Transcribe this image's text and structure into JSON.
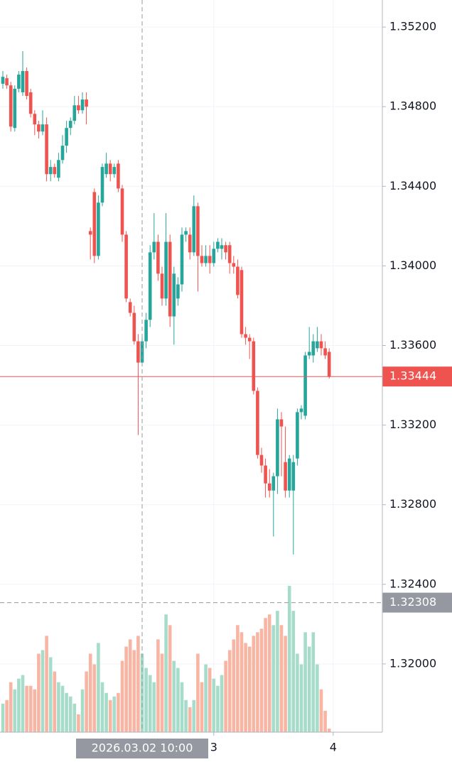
{
  "chart_data": {
    "type": "candlestick",
    "up_color": "#26a69a",
    "down_color": "#ef5350",
    "volume_up_color": "#a6dcc9",
    "volume_down_color": "#f8b5a4",
    "ylim": [
      1.31657,
      1.35336
    ],
    "yticks": [
      {
        "value": 1.352,
        "label": "1.35200"
      },
      {
        "value": 1.348,
        "label": "1.34800"
      },
      {
        "value": 1.344,
        "label": "1.34400"
      },
      {
        "value": 1.34,
        "label": "1.34000"
      },
      {
        "value": 1.336,
        "label": "1.33600"
      },
      {
        "value": 1.332,
        "label": "1.33200"
      },
      {
        "value": 1.328,
        "label": "1.32800"
      },
      {
        "value": 1.324,
        "label": "1.32400"
      },
      {
        "value": 1.32,
        "label": "1.32000"
      }
    ],
    "xticks": [
      {
        "value": 53,
        "label": "3"
      },
      {
        "value": 83,
        "label": "4"
      }
    ],
    "grid": true,
    "last_price": 1.33444,
    "crosshair": {
      "x": 35,
      "x_label": "2026.03.02 10:00",
      "y": 1.32308
    },
    "open": [
      1.34915,
      1.34943,
      1.34907,
      1.34693,
      1.3489,
      1.34872,
      1.34979,
      1.34872,
      1.34764,
      1.34711,
      1.34675,
      1.34711,
      1.34461,
      1.34497,
      1.34443,
      1.34532,
      1.34604,
      1.34693,
      1.34729,
      1.34807,
      1.34782,
      1.34836,
      1.34175,
      1.34371,
      1.3405,
      1.34318,
      1.34461,
      1.34514,
      1.34461,
      1.34514,
      1.34389,
      1.34157,
      1.33818,
      1.33764,
      1.33621,
      1.33514,
      1.33621,
      1.33729,
      1.34068,
      1.34121,
      1.33961,
      1.33836,
      1.34121,
      1.33746,
      1.33836,
      1.33907,
      1.34157,
      1.34157,
      1.34068,
      1.343,
      1.3405,
      1.34014,
      1.3405,
      1.34014,
      1.34086,
      1.34086,
      1.34104,
      1.34104,
      1.34014,
      1.33996,
      1.33979,
      1.33657,
      1.33639,
      1.33621,
      1.33372,
      1.3305,
      1.32997,
      1.32907,
      1.32871,
      1.32943,
      1.33229,
      1.33014,
      1.32871,
      1.32871,
      1.33032,
      1.33265,
      1.33247,
      1.3355,
      1.3355,
      1.33586,
      1.33621,
      1.33586,
      1.33568
    ],
    "high": [
      1.34979,
      1.34961,
      1.34925,
      1.34907,
      1.34979,
      1.35079,
      1.34997,
      1.3489,
      1.34782,
      1.34729,
      1.34782,
      1.34746,
      1.34532,
      1.34514,
      1.34568,
      1.34657,
      1.34729,
      1.34746,
      1.34854,
      1.34854,
      1.34872,
      1.34872,
      1.34193,
      1.34389,
      1.34354,
      1.34514,
      1.34568,
      1.34532,
      1.34514,
      1.34532,
      1.34407,
      1.34175,
      1.33836,
      1.338,
      1.33657,
      1.33657,
      1.33764,
      1.34104,
      1.34265,
      1.34157,
      1.33996,
      1.34265,
      1.34157,
      1.33996,
      1.33943,
      1.34193,
      1.34193,
      1.34193,
      1.34354,
      1.34318,
      1.34104,
      1.34104,
      1.34104,
      1.34121,
      1.34139,
      1.34139,
      1.34121,
      1.34121,
      1.3405,
      1.34032,
      1.33996,
      1.33693,
      1.33657,
      1.33639,
      1.33389,
      1.33086,
      1.33032,
      1.32979,
      1.32961,
      1.33283,
      1.33265,
      1.33193,
      1.3305,
      1.3305,
      1.33283,
      1.333,
      1.33568,
      1.33693,
      1.33657,
      1.33693,
      1.33657,
      1.33621,
      1.33586
    ],
    "low": [
      1.3489,
      1.3489,
      1.34675,
      1.34675,
      1.34872,
      1.34854,
      1.34836,
      1.34746,
      1.34657,
      1.3464,
      1.34657,
      1.34425,
      1.34425,
      1.34443,
      1.34425,
      1.34514,
      1.34568,
      1.34657,
      1.34711,
      1.34764,
      1.34764,
      1.34711,
      1.34032,
      1.34014,
      1.34032,
      1.343,
      1.34443,
      1.34425,
      1.34443,
      1.34371,
      1.34121,
      1.33818,
      1.33746,
      1.33604,
      1.3315,
      1.33496,
      1.33586,
      1.33693,
      1.34032,
      1.33925,
      1.338,
      1.338,
      1.33693,
      1.33604,
      1.338,
      1.33871,
      1.34121,
      1.34032,
      1.3405,
      1.33871,
      1.33996,
      1.33996,
      1.33961,
      1.33996,
      1.34068,
      1.34032,
      1.34032,
      1.33961,
      1.33961,
      1.33836,
      1.33639,
      1.33604,
      1.33532,
      1.33354,
      1.33032,
      1.32961,
      1.32836,
      1.32836,
      1.3264,
      1.32854,
      1.32943,
      1.32836,
      1.32836,
      1.3255,
      1.32997,
      1.33229,
      1.33229,
      1.33532,
      1.33514,
      1.33568,
      1.3355,
      1.33532,
      1.33434
    ],
    "close": [
      1.3495,
      1.34907,
      1.347,
      1.3489,
      1.34961,
      1.34979,
      1.34854,
      1.34764,
      1.34711,
      1.34675,
      1.34711,
      1.34461,
      1.34497,
      1.34461,
      1.34532,
      1.34604,
      1.34693,
      1.34729,
      1.34807,
      1.34782,
      1.34836,
      1.348,
      1.34157,
      1.3405,
      1.34318,
      1.34497,
      1.34514,
      1.34461,
      1.34497,
      1.34389,
      1.34157,
      1.33836,
      1.33764,
      1.33621,
      1.33514,
      1.33621,
      1.33729,
      1.34068,
      1.34121,
      1.33961,
      1.33836,
      1.34121,
      1.33746,
      1.33961,
      1.33907,
      1.34157,
      1.34175,
      1.34068,
      1.343,
      1.3405,
      1.34014,
      1.3405,
      1.34014,
      1.34086,
      1.34121,
      1.34104,
      1.34068,
      1.34014,
      1.33996,
      1.33854,
      1.33657,
      1.33639,
      1.33621,
      1.33372,
      1.3305,
      1.32997,
      1.32907,
      1.32871,
      1.32943,
      1.33229,
      1.33193,
      1.32871,
      1.33032,
      1.33014,
      1.33265,
      1.33283,
      1.3355,
      1.33568,
      1.33621,
      1.33621,
      1.33586,
      1.3355,
      1.33444
    ],
    "volume": [
      40,
      45,
      70,
      60,
      75,
      80,
      65,
      65,
      60,
      110,
      115,
      135,
      105,
      85,
      70,
      65,
      55,
      50,
      40,
      25,
      60,
      85,
      110,
      95,
      125,
      70,
      55,
      45,
      50,
      55,
      100,
      120,
      130,
      115,
      135,
      110,
      90,
      80,
      70,
      130,
      110,
      165,
      150,
      100,
      90,
      70,
      45,
      35,
      45,
      110,
      70,
      95,
      90,
      75,
      65,
      80,
      100,
      115,
      130,
      150,
      140,
      125,
      120,
      135,
      140,
      145,
      160,
      165,
      150,
      170,
      150,
      135,
      205,
      170,
      110,
      95,
      140,
      120,
      140,
      95,
      60,
      30,
      5
    ]
  }
}
